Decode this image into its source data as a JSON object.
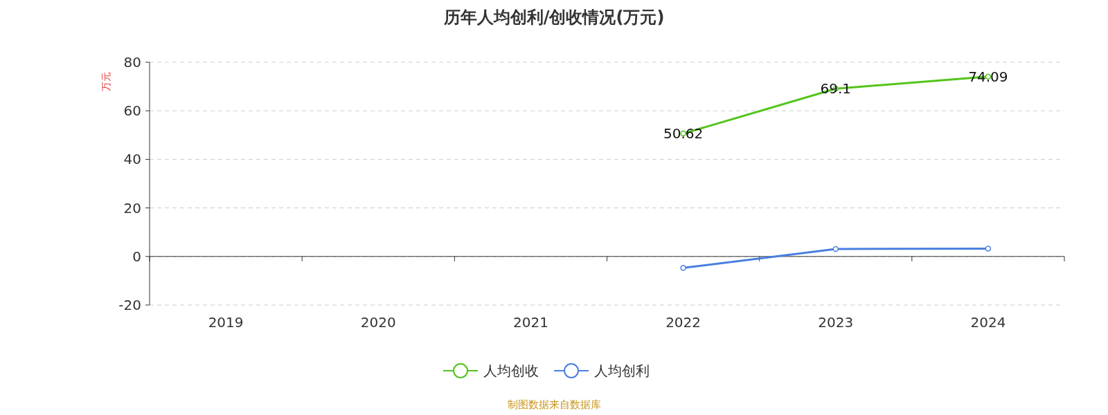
{
  "chart_data": {
    "type": "line",
    "title": "历年人均创利/创收情况(万元)",
    "ylabel": "万元",
    "categories": [
      "2019",
      "2020",
      "2021",
      "2022",
      "2023",
      "2024"
    ],
    "series": [
      {
        "name": "人均创收",
        "color": "#52c41a",
        "values": [
          null,
          null,
          null,
          50.62,
          69.1,
          74.09
        ],
        "value_labels": [
          null,
          null,
          null,
          "50.62",
          "69.1",
          "74.09"
        ]
      },
      {
        "name": "人均创利",
        "color": "#4a7fe0",
        "values": [
          null,
          null,
          null,
          -4.7,
          3.1,
          3.2
        ]
      }
    ],
    "ylim": [
      -20,
      80
    ],
    "yticks": [
      -20,
      0,
      20,
      40,
      60,
      80
    ],
    "grid": "y",
    "legend": "bottom",
    "marker": "circle",
    "annotations": [
      "制图数据来自数据库"
    ]
  }
}
